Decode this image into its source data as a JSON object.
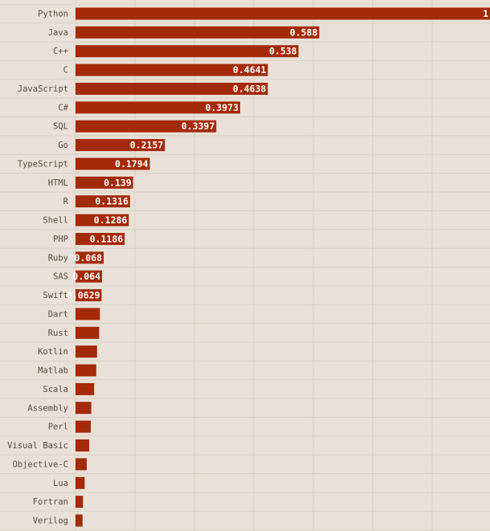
{
  "chart_data": {
    "type": "bar",
    "orientation": "horizontal",
    "title": "",
    "xlabel": "",
    "ylabel": "",
    "xlim": [
      0,
      1
    ],
    "grid": true,
    "bar_color": "#a32a0a",
    "background": "#e9e1d7",
    "categories": [
      "Python",
      "Java",
      "C++",
      "C",
      "JavaScript",
      "C#",
      "SQL",
      "Go",
      "TypeScript",
      "HTML",
      "R",
      "Shell",
      "PHP",
      "Ruby",
      "SAS",
      "Swift",
      "Dart",
      "Rust",
      "Kotlin",
      "Matlab",
      "Scala",
      "Assembly",
      "Perl",
      "Visual Basic",
      "Objective-C",
      "Lua",
      "Fortran",
      "Verilog"
    ],
    "values": [
      1,
      0.588,
      0.538,
      0.4641,
      0.4638,
      0.3973,
      0.3397,
      0.2157,
      0.1794,
      0.139,
      0.1316,
      0.1286,
      0.1186,
      0.068,
      0.064,
      0.0629,
      0.059,
      0.057,
      0.052,
      0.05,
      0.045,
      0.038,
      0.037,
      0.033,
      0.027,
      0.022,
      0.018,
      0.017
    ],
    "value_labels": [
      "1",
      "0.588",
      "0.538",
      "0.4641",
      "0.4638",
      "0.3973",
      "0.3397",
      "0.2157",
      "0.1794",
      "0.139",
      "0.1316",
      "0.1286",
      "0.1186",
      "0.068",
      "0.064",
      "0.0629",
      "",
      "",
      "",
      "",
      "",
      "",
      "",
      "",
      "",
      "",
      "",
      ""
    ]
  }
}
